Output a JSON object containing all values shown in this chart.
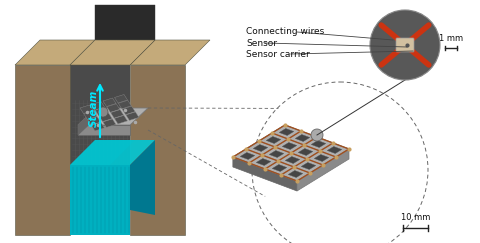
{
  "background_color": "#ffffff",
  "colors": {
    "wall_front": "#8b7355",
    "wall_side": "#7a6545",
    "wall_top": "#c4aa7a",
    "channel_bg": "#4a4a4a",
    "channel_dark": "#2a2a2a",
    "water_top": "#00c8d4",
    "water_mid": "#00b0c0",
    "water_bot": "#007890",
    "steam_color": "#00e8ff",
    "mesh_gray": "#8a8a8a",
    "mesh_light": "#b0b0b0",
    "mesh_top": "#c8c8c8",
    "mesh_dark": "#666666",
    "wire_color": "#a05020",
    "wire_dot": "#c8a060",
    "sensor_carrier_gray": "#707070",
    "zoom_bg": "#585858",
    "zoom_wire": "#cc3311",
    "zoom_carrier": "#d2c0a0",
    "dashed_line": "#666666",
    "text_color": "#111111",
    "scale_bar": "#222222",
    "annotation": "#444444"
  },
  "labels": {
    "connecting_wires": "Connecting wires",
    "sensor": "Sensor",
    "sensor_carrier": "Sensor carrier",
    "scale1": "1 mm",
    "scale2": "10 mm",
    "steam": "Steam"
  },
  "font_label": 6.5,
  "font_scale": 6.0,
  "font_steam": 7.5
}
